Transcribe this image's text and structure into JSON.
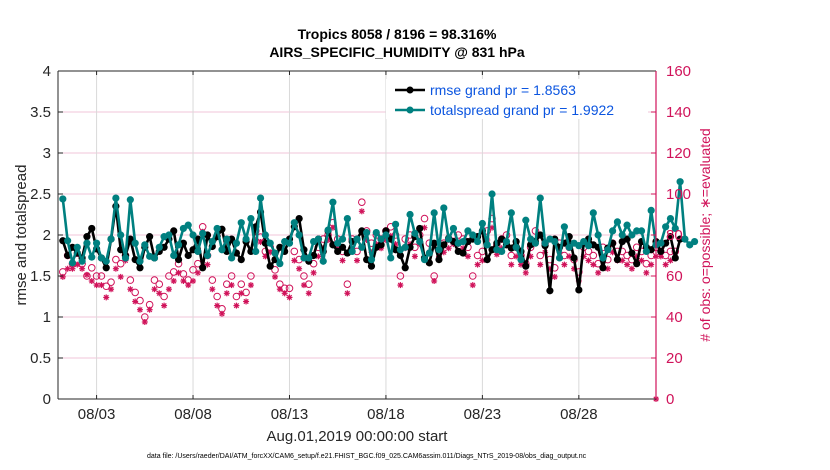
{
  "chart_data": {
    "type": "line",
    "title": [
      "Tropics 8058 / 8196 = 98.316%",
      "AIRS_SPECIFIC_HUMIDITY @ 831 hPa"
    ],
    "xlabel": "Aug.01,2019 00:00:00 start",
    "ylabel": "rmse and totalspread",
    "ylabel_right": "# of obs: o=possible; ∗=evaluated",
    "xlim_days": [
      0,
      31
    ],
    "ylim": [
      0,
      4
    ],
    "ylim_right": [
      0,
      160
    ],
    "x_ticks": [
      {
        "day": 2,
        "label": "08/03"
      },
      {
        "day": 7,
        "label": "08/08"
      },
      {
        "day": 12,
        "label": "08/13"
      },
      {
        "day": 17,
        "label": "08/18"
      },
      {
        "day": 22,
        "label": "08/23"
      },
      {
        "day": 27,
        "label": "08/28"
      }
    ],
    "y_ticks": [
      "0",
      "0.5",
      "1",
      "1.5",
      "2",
      "2.5",
      "3",
      "3.5",
      "4"
    ],
    "y_ticks_right": [
      "0",
      "20",
      "40",
      "60",
      "80",
      "100",
      "120",
      "140",
      "160"
    ],
    "grid": true,
    "legend_position": "top-right",
    "legend": [
      {
        "label": "rmse grand pr = 1.8563",
        "color": "#000000"
      },
      {
        "label": "totalspread grand pr = 1.9922",
        "color": "#008080"
      }
    ],
    "step_days": 0.25,
    "series": [
      {
        "name": "rmse",
        "color": "#000000",
        "axis": "left",
        "values": [
          1.93,
          1.75,
          1.85,
          1.78,
          1.72,
          1.98,
          2.08,
          1.83,
          1.72,
          1.6,
          1.95,
          2.35,
          1.82,
          1.75,
          1.95,
          1.7,
          1.6,
          1.85,
          1.98,
          1.72,
          1.8,
          1.85,
          1.95,
          2.05,
          1.7,
          1.9,
          1.75,
          1.82,
          1.95,
          1.6,
          2.0,
          1.86,
          1.98,
          2.07,
          1.8,
          1.95,
          1.78,
          1.7,
          1.92,
          1.8,
          2.1,
          2.28,
          1.9,
          1.62,
          1.7,
          1.85,
          1.8,
          1.95,
          2.1,
          2.2,
          1.82,
          1.68,
          1.75,
          1.95,
          1.8,
          2.05,
          1.88,
          1.8,
          1.85,
          1.78,
          1.92,
          1.95,
          2.05,
          1.7,
          1.62,
          1.85,
          1.88,
          2.05,
          1.95,
          1.82,
          1.75,
          1.6,
          1.85,
          1.98,
          2.08,
          1.72,
          1.66,
          1.9,
          1.7,
          1.88,
          1.96,
          1.92,
          1.8,
          1.78,
          1.92,
          1.95,
          1.98,
          2.05,
          1.7,
          1.82,
          1.9,
          1.95,
          1.88,
          1.84,
          1.92,
          1.8,
          1.62,
          1.88,
          1.92,
          2.0,
          1.87,
          1.32,
          1.95,
          1.85,
          1.9,
          1.98,
          1.72,
          1.33,
          1.9,
          1.95,
          1.88,
          1.85,
          1.6,
          1.84,
          1.9,
          1.7,
          1.92,
          1.95,
          1.78,
          1.65,
          1.92,
          1.85,
          1.82,
          1.92,
          1.8,
          1.9,
          1.98,
          1.72,
          1.95
        ]
      },
      {
        "name": "totalspread",
        "color": "#008080",
        "axis": "left",
        "values": [
          2.44,
          1.93,
          1.66,
          1.85,
          1.68,
          1.9,
          1.73,
          1.9,
          1.72,
          1.68,
          1.95,
          2.45,
          2.0,
          1.72,
          2.43,
          1.9,
          1.68,
          1.88,
          1.74,
          1.72,
          1.85,
          1.98,
          2.0,
          1.75,
          1.88,
          2.08,
          2.12,
          2.0,
          1.8,
          2.02,
          1.75,
          1.92,
          2.08,
          1.82,
          1.95,
          1.72,
          1.9,
          2.15,
          1.95,
          2.2,
          1.8,
          2.45,
          2.0,
          1.9,
          1.78,
          1.65,
          1.92,
          1.9,
          2.15,
          2.0,
          1.72,
          1.72,
          1.92,
          1.95,
          1.68,
          2.06,
          2.4,
          1.9,
          1.95,
          2.2,
          1.8,
          1.95,
          1.85,
          2.03,
          1.7,
          2.03,
          1.95,
          2.0,
          1.72,
          2.13,
          1.82,
          1.85,
          2.25,
          2.02,
          1.92,
          1.7,
          1.78,
          2.27,
          1.82,
          2.33,
          1.95,
          2.08,
          1.9,
          1.92,
          2.05,
          2.0,
          1.92,
          2.14,
          1.88,
          2.5,
          1.82,
          1.8,
          1.92,
          2.27,
          1.85,
          1.7,
          2.18,
          1.95,
          1.9,
          2.45,
          1.9,
          1.95,
          1.92,
          1.72,
          2.1,
          1.85,
          1.9,
          1.87,
          1.92,
          1.87,
          2.27,
          2.0,
          1.72,
          1.82,
          2.05,
          2.16,
          2.0,
          2.12,
          2.0,
          2.05,
          2.05,
          1.8,
          2.3,
          1.88,
          1.9,
          2.1,
          2.2,
          2.08,
          2.65,
          1.95,
          1.88,
          1.92
        ]
      },
      {
        "name": "obs_possible",
        "color": "#d0135a",
        "axis": "right",
        "marker": "circle",
        "values": [
          62,
          70,
          66,
          68,
          66,
          60,
          64,
          60,
          60,
          55,
          57,
          68,
          66,
          70,
          58,
          52,
          48,
          40,
          46,
          58,
          56,
          50,
          60,
          62,
          66,
          61,
          58,
          63,
          66,
          84,
          70,
          58,
          50,
          44,
          56,
          60,
          50,
          56,
          52,
          60,
          82,
          79,
          72,
          74,
          63,
          56,
          54,
          54,
          72,
          68,
          60,
          56,
          66,
          74,
          78,
          80,
          86,
          78,
          72,
          56,
          78,
          72,
          96,
          82,
          76,
          80,
          78,
          82,
          84,
          80,
          60,
          78,
          80,
          74,
          80,
          88,
          76,
          60,
          74,
          76,
          78,
          80,
          80,
          78,
          74,
          60,
          70,
          72,
          82,
          88,
          75,
          78,
          80,
          70,
          74,
          70,
          66,
          74,
          82,
          70,
          76,
          68,
          64,
          76,
          70,
          74,
          68,
          62,
          74,
          72,
          70,
          66,
          74,
          68,
          76,
          72,
          72,
          70,
          68,
          74,
          72,
          66,
          70,
          74,
          74,
          70,
          72,
          72
        ]
      },
      {
        "name": "obs_evaluated",
        "color": "#d0135a",
        "axis": "right",
        "marker": "asterisk",
        "values": [
          62,
          66,
          66,
          68,
          66,
          63,
          60,
          58,
          58,
          52,
          56,
          66,
          62,
          70,
          56,
          50,
          46,
          40,
          46,
          56,
          54,
          48,
          56,
          60,
          64,
          60,
          58,
          60,
          64,
          84,
          68,
          56,
          48,
          44,
          54,
          58,
          48,
          54,
          50,
          58,
          80,
          79,
          72,
          74,
          62,
          56,
          54,
          52,
          70,
          66,
          58,
          54,
          64,
          72,
          76,
          80,
          86,
          76,
          70,
          54,
          76,
          70,
          94,
          80,
          74,
          78,
          76,
          80,
          82,
          78,
          58,
          76,
          78,
          72,
          78,
          86,
          74,
          60,
          72,
          74,
          76,
          78,
          78,
          76,
          72,
          58,
          68,
          70,
          80,
          86,
          73,
          76,
          78,
          68,
          72,
          68,
          64,
          72,
          80,
          68,
          74,
          66,
          62,
          74,
          68,
          72,
          66,
          60,
          72,
          70,
          68,
          64,
          72,
          66,
          74,
          70,
          70,
          68,
          66,
          72,
          70,
          64,
          68,
          72,
          72,
          68,
          70,
          0
        ]
      }
    ]
  },
  "footer": "data file: /Users/raeder/DAI/ATM_forcXX/CAM6_setup/f.e21.FHIST_BGC.f09_025.CAM6assim.011/Diags_NTrS_2019-08/obs_diag_output.nc"
}
